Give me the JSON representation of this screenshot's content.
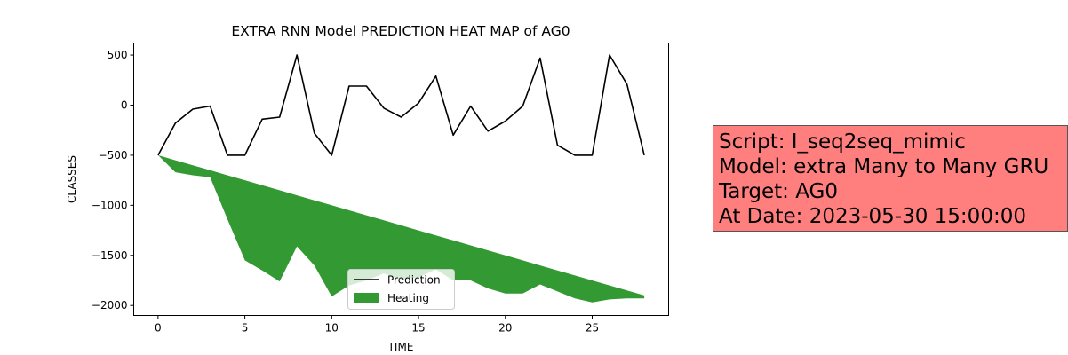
{
  "chart_data": {
    "type": "line",
    "title": "EXTRA RNN Model PREDICTION HEAT MAP of AG0",
    "xlabel": "TIME",
    "ylabel": "CLASSES",
    "xlim": [
      -1.4,
      29.4
    ],
    "ylim": [
      -2100,
      620
    ],
    "xticks": [
      0,
      5,
      10,
      15,
      20,
      25
    ],
    "yticks": [
      500,
      0,
      -500,
      -1000,
      -1500,
      -2000
    ],
    "x": [
      0,
      1,
      2,
      3,
      4,
      5,
      6,
      7,
      8,
      9,
      10,
      11,
      12,
      13,
      14,
      15,
      16,
      17,
      18,
      19,
      20,
      21,
      22,
      23,
      24,
      25,
      26,
      27,
      28
    ],
    "series": [
      {
        "name": "Prediction",
        "kind": "line",
        "color": "#000000",
        "values": [
          -500,
          -180,
          -40,
          -10,
          -500,
          -500,
          -140,
          -120,
          500,
          -280,
          -500,
          190,
          190,
          -30,
          -120,
          20,
          290,
          -300,
          -10,
          -260,
          -160,
          -10,
          470,
          -400,
          -500,
          -500,
          500,
          210,
          -500
        ]
      },
      {
        "name": "Heating",
        "kind": "fill_between",
        "color": "#339933",
        "upper": [
          -500,
          -550,
          -600,
          -650,
          -700,
          -750,
          -800,
          -850,
          -900,
          -950,
          -1000,
          -1050,
          -1100,
          -1150,
          -1200,
          -1250,
          -1300,
          -1350,
          -1400,
          -1450,
          -1500,
          -1550,
          -1600,
          -1650,
          -1700,
          -1750,
          -1800,
          -1850,
          -1900
        ],
        "lower": [
          -500,
          -670,
          -700,
          -720,
          -1140,
          -1550,
          -1650,
          -1760,
          -1410,
          -1600,
          -1910,
          -1800,
          -1750,
          -1680,
          -1740,
          -1720,
          -1640,
          -1750,
          -1750,
          -1830,
          -1880,
          -1880,
          -1790,
          -1860,
          -1930,
          -1970,
          -1940,
          -1930,
          -1930
        ]
      }
    ],
    "legend": {
      "position": "lower-center"
    },
    "grid": false
  },
  "info_box": {
    "background": "#ff7f7f",
    "lines": [
      "Script: I_seq2seq_mimic",
      "Model: extra Many to Many GRU",
      "Target: AG0",
      "At Date: 2023-05-30 15:00:00"
    ]
  }
}
